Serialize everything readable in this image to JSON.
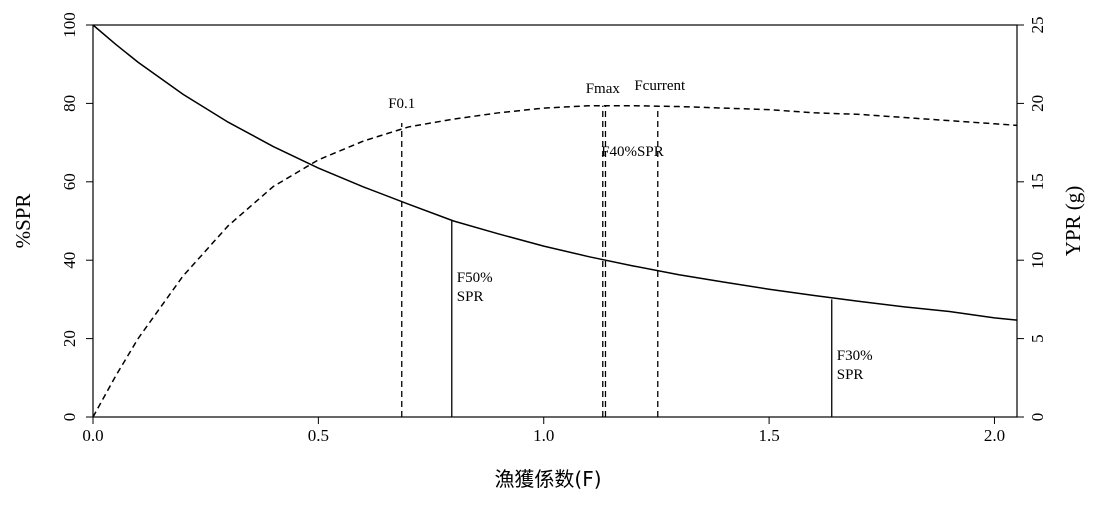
{
  "chart_data": {
    "type": "line",
    "x_label": "漁獲係数(F)",
    "y_label": "%SPR",
    "y2_label": "YPR (g)",
    "xlim": [
      0,
      2.05
    ],
    "ylim": [
      0,
      100
    ],
    "y2lim": [
      0,
      25
    ],
    "xticks": [
      {
        "value": 0,
        "label": "0.0"
      },
      0.5,
      {
        "value": 1,
        "label": "1.0"
      },
      1.5,
      {
        "value": 2,
        "label": "2.0"
      }
    ],
    "yticks": [
      0,
      20,
      40,
      60,
      80,
      100
    ],
    "y2ticks": [
      0,
      5,
      10,
      15,
      20,
      25
    ],
    "x": [
      0,
      0.05,
      0.1,
      0.2,
      0.3,
      0.4,
      0.5,
      0.6,
      0.7,
      0.8,
      0.9,
      1.0,
      1.1,
      1.2,
      1.3,
      1.4,
      1.5,
      1.6,
      1.7,
      1.8,
      1.9,
      2.0,
      2.05
    ],
    "series": [
      {
        "color": "#000000",
        "style": "solid",
        "values": [
          100,
          95.1,
          90.5,
          82.3,
          75.2,
          69,
          63.5,
          58.7,
          54.3,
          50,
          46.7,
          43.6,
          40.9,
          38.5,
          36.3,
          34.4,
          32.6,
          31,
          29.5,
          28.1,
          26.9,
          25.3,
          24.7
        ]
      },
      {
        "color": "#000000",
        "style": "dashed",
        "axis": "y2",
        "values": [
          0,
          2.6,
          5.0,
          9.0,
          12.2,
          14.7,
          16.4,
          17.6,
          18.5,
          19.0,
          19.4,
          19.7,
          19.85,
          19.85,
          19.8,
          19.7,
          19.6,
          19.4,
          19.3,
          19.1,
          18.9,
          18.7,
          18.6
        ]
      }
    ],
    "reference_lines": [
      {
        "label": [
          "F0.1"
        ],
        "x": 0.685,
        "y": 18.75,
        "axis": "y2",
        "style": "dashed"
      },
      {
        "label": [
          "F50%",
          "SPR"
        ],
        "x": 0.796,
        "y": 50,
        "axis": "y",
        "style": "solid"
      },
      {
        "label": [
          "Fmax"
        ],
        "x": 1.131,
        "y": 19.85,
        "axis": "y2",
        "style": "dashed"
      },
      {
        "label": [
          "F40%SPR"
        ],
        "x": 1.137,
        "y": 19.85,
        "axis": "y2",
        "style": "dashed"
      },
      {
        "label": [
          "Fcurrent"
        ],
        "x": 1.253,
        "y": 19.7,
        "axis": "y2",
        "style": "dashed"
      },
      {
        "label": [
          "F30%",
          "SPR"
        ],
        "x": 1.639,
        "y": 30,
        "axis": "y",
        "style": "solid"
      }
    ]
  }
}
